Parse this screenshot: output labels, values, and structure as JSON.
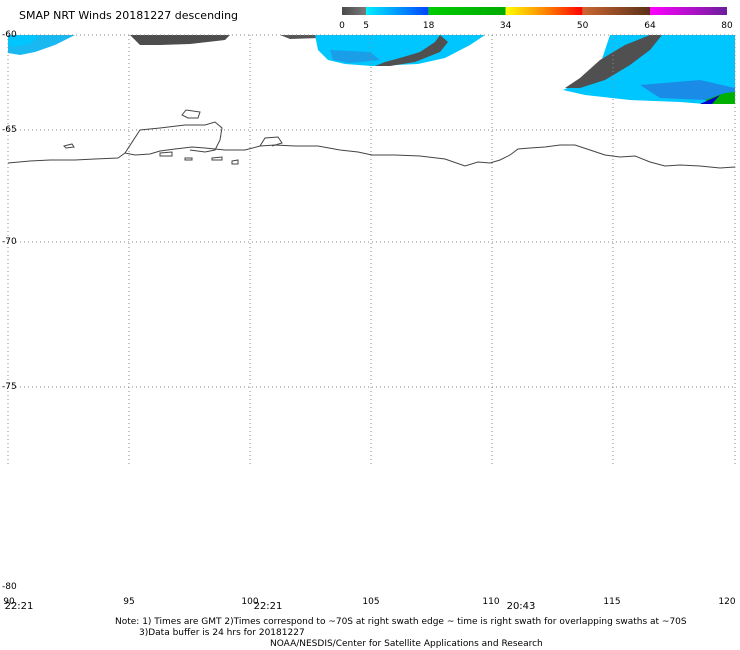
{
  "title": "SMAP NRT Winds  20181227 descending",
  "colorbar": {
    "labels": [
      "0",
      "5",
      "18",
      "34",
      "50",
      "64",
      "80"
    ],
    "segments": [
      {
        "from": 0,
        "to": 5,
        "colors": [
          "#4a4a4a",
          "#7a7a7a"
        ]
      },
      {
        "from": 5,
        "to": 18,
        "colors": [
          "#00eeff",
          "#0044ff"
        ]
      },
      {
        "from": 18,
        "to": 34,
        "colors": [
          "#00cc00",
          "#00aa00"
        ]
      },
      {
        "from": 34,
        "to": 50,
        "colors": [
          "#ffff00",
          "#ff8800",
          "#ff0000"
        ]
      },
      {
        "from": 50,
        "to": 64,
        "colors": [
          "#cc6633",
          "#5a3018"
        ]
      },
      {
        "from": 64,
        "to": 80,
        "colors": [
          "#ff00ff",
          "#6a1f9a"
        ]
      }
    ]
  },
  "map": {
    "lat_labels": [
      "-60",
      "-65",
      "-70",
      "-75",
      "-80"
    ],
    "lon_labels": [
      "90",
      "95",
      "100",
      "105",
      "110",
      "115",
      "120"
    ],
    "swath_times": [
      {
        "lon": 90.5,
        "time": "22:21"
      },
      {
        "lon": 100.5,
        "time": "22:21"
      },
      {
        "lon": 111.3,
        "time": "20:43"
      }
    ]
  },
  "notes": {
    "line1": "Note: 1) Times are GMT 2)Times correspond to ~70S at right swath edge ~ time is right swath for overlapping swaths at ~70S",
    "line2": "3)Data buffer is 24 hrs for 20181227",
    "line3": "NOAA/NESDIS/Center for Satellite Applications and Research"
  }
}
